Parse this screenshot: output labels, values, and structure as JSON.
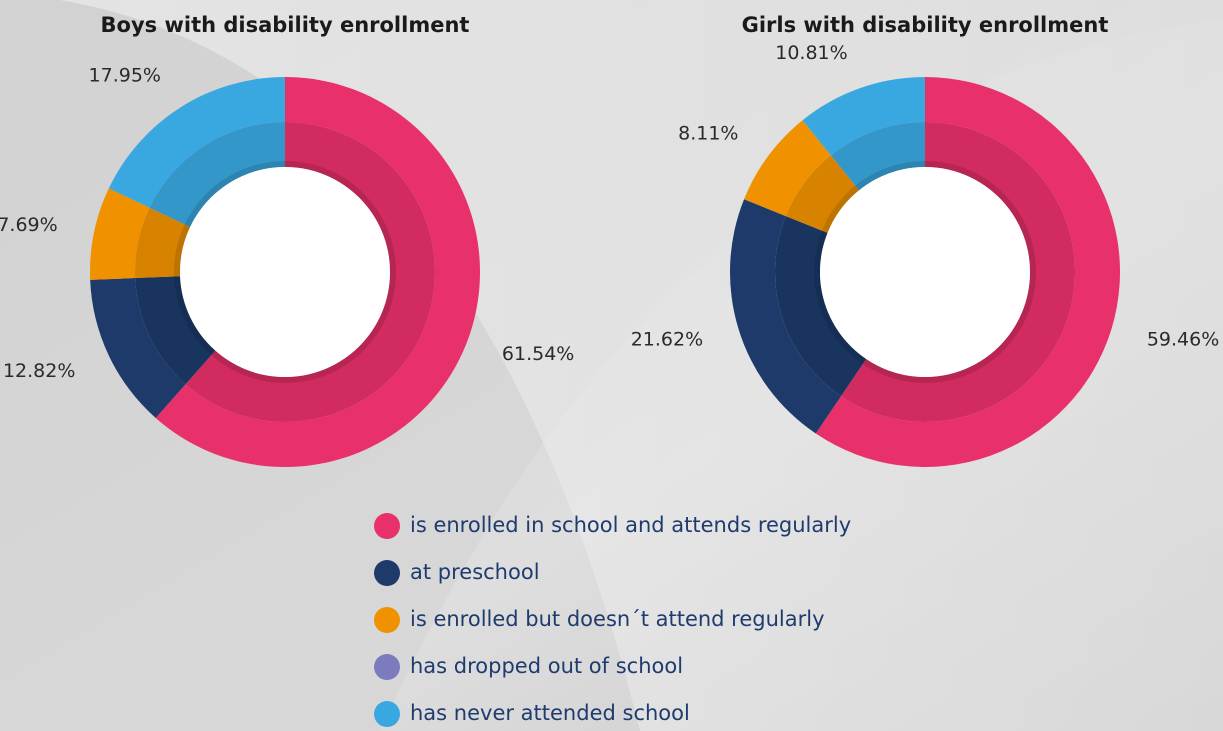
{
  "chart_data": [
    {
      "type": "pie",
      "title": "Boys with disability enrollment",
      "categories": [
        "is enrolled in school and attends regularly",
        "at preschool",
        "is enrolled but doesn´t attend regularly",
        "has dropped out of school",
        "has never attended school"
      ],
      "values": [
        61.54,
        12.82,
        7.69,
        0,
        17.95
      ],
      "value_labels": [
        "61.54%",
        "12.82%",
        "7.69%",
        null,
        "17.95%"
      ],
      "colors": [
        "#e8306a",
        "#1d3a6b",
        "#f09200",
        "#7b7bbd",
        "#3aa8e0"
      ]
    },
    {
      "type": "pie",
      "title": "Girls with disability enrollment",
      "categories": [
        "is enrolled in school and attends regularly",
        "at preschool",
        "is enrolled but doesn´t attend regularly",
        "has dropped out of school",
        "has never attended school"
      ],
      "values": [
        59.46,
        21.62,
        8.11,
        0,
        10.81
      ],
      "value_labels": [
        "59.46%",
        "21.62%",
        "8.11%",
        null,
        "10.81%"
      ],
      "colors": [
        "#e8306a",
        "#1d3a6b",
        "#f09200",
        "#7b7bbd",
        "#3aa8e0"
      ]
    }
  ]
}
